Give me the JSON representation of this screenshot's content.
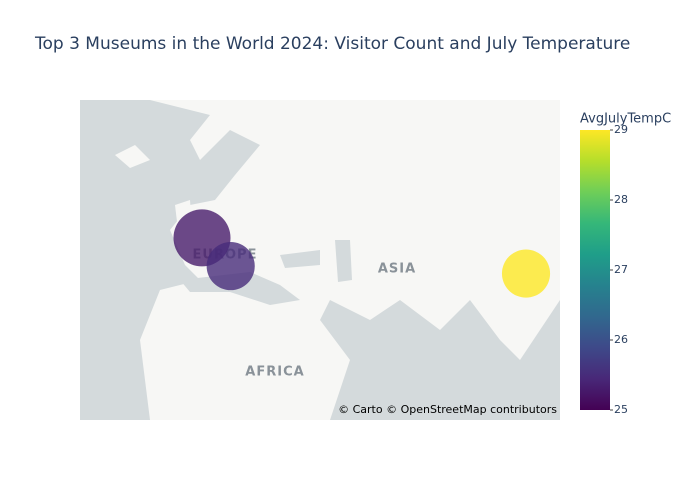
{
  "chart_data": {
    "type": "scatter_map",
    "title": "Top 3 Museums in the World 2024: Visitor Count and July Temperature",
    "lon": [
      2.35,
      12.45,
      116.4
    ],
    "lat": [
      48.86,
      41.9,
      39.92
    ],
    "size": [
      8.7,
      6.2,
      6.2
    ],
    "values": [
      25.3,
      25.5,
      29
    ],
    "colorbar": {
      "title": "AvgJulyTempC",
      "lim": [
        25,
        29
      ],
      "ticks": [
        25,
        26,
        27,
        28,
        29
      ],
      "colors": [
        "#440154",
        "#482878",
        "#3e4989",
        "#31688e",
        "#26828e",
        "#1f9e89",
        "#35b779",
        "#6ece58",
        "#b5de2b",
        "#fde725"
      ]
    },
    "map_labels": [
      "EUROPE",
      "ASIA",
      "AFRICA"
    ],
    "attribution": "© Carto © OpenStreetMap contributors"
  }
}
